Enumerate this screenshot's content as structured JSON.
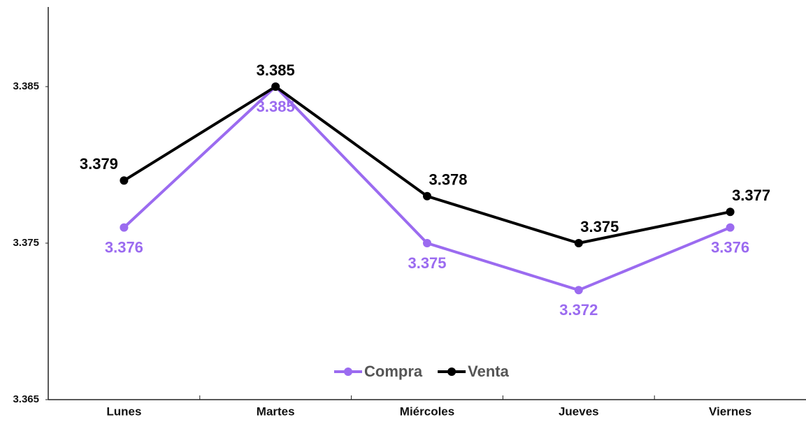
{
  "chart_data": {
    "type": "line",
    "categories": [
      "Lunes",
      "Martes",
      "Miércoles",
      "Jueves",
      "Viernes"
    ],
    "series": [
      {
        "name": "Compra",
        "color": "#9b6bf0",
        "values": [
          3.376,
          3.385,
          3.375,
          3.372,
          3.376
        ]
      },
      {
        "name": "Venta",
        "color": "#000000",
        "values": [
          3.379,
          3.385,
          3.378,
          3.375,
          3.377
        ]
      }
    ],
    "ylim": [
      3.365,
      3.39
    ],
    "yticks": [
      3.365,
      3.375,
      3.385
    ],
    "grid": false,
    "legend": "bottom"
  }
}
